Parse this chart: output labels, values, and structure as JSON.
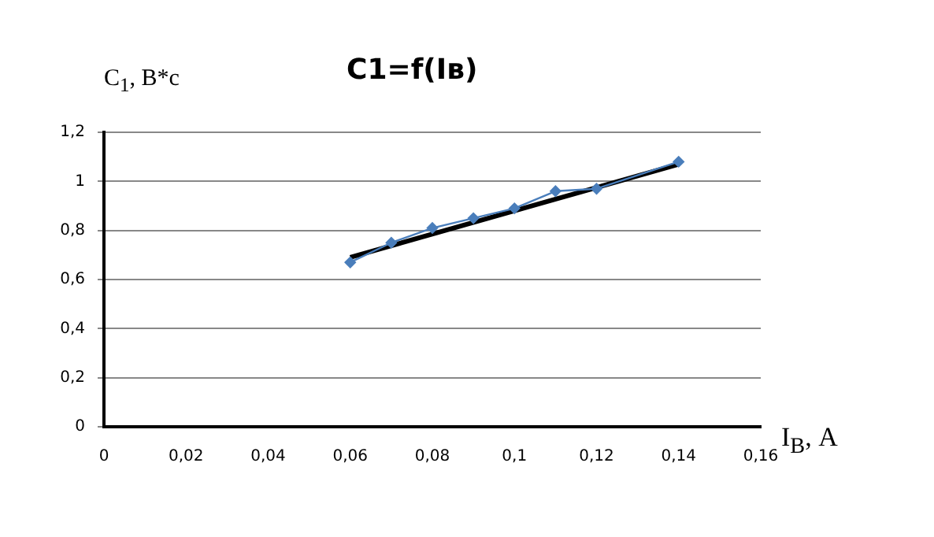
{
  "chart_data": {
    "type": "line",
    "title": "C1=f(Iв)",
    "xlabel": "I$_{В}$, А",
    "ylabel": "C$_{1}$, В*с",
    "x": [
      0.06,
      0.07,
      0.08,
      0.09,
      0.1,
      0.11,
      0.12,
      0.14
    ],
    "series": [
      {
        "color": "#4a7ebb",
        "values": [
          0.67,
          0.75,
          0.81,
          0.85,
          0.89,
          0.96,
          0.97,
          1.08
        ]
      },
      {
        "color": "#000000",
        "x": [
          0.06,
          0.14
        ],
        "values": [
          0.69,
          1.07
        ],
        "marker": "none"
      }
    ],
    "xlim": [
      0,
      0.16
    ],
    "xticks": [
      0,
      {
        "value": 0.02,
        "label": "0,02"
      },
      {
        "value": 0.04,
        "label": "0,04"
      },
      {
        "value": 0.06,
        "label": "0,06"
      },
      {
        "value": 0.08,
        "label": "0,08"
      },
      {
        "value": 0.1,
        "label": "0,1"
      },
      {
        "value": 0.12,
        "label": "0,12"
      },
      {
        "value": 0.14,
        "label": "0,14"
      },
      {
        "value": 0.16,
        "label": "0,16"
      }
    ],
    "ylim": [
      0,
      1.2
    ],
    "yticks": [
      0,
      {
        "value": 0.2,
        "label": "0,2"
      },
      {
        "value": 0.4,
        "label": "0,4"
      },
      {
        "value": 0.6,
        "label": "0,6"
      },
      {
        "value": 0.8,
        "label": "0,8"
      },
      1,
      {
        "value": 1.2,
        "label": "1,2"
      }
    ],
    "grid": "y",
    "marker": "diamond",
    "line_style": "solid",
    "legend": false
  }
}
